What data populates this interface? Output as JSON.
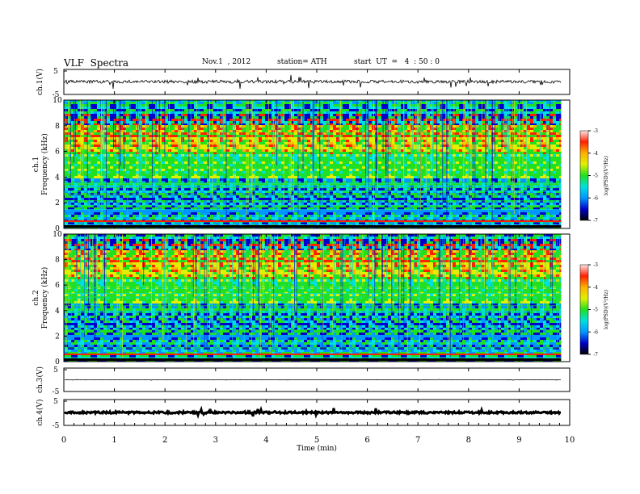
{
  "header": {
    "title": "VLF  Spectra",
    "date": "Nov.1  , 2012",
    "station": "station= ATH",
    "start_ut": "start  UT  =   4  : 50 : 0"
  },
  "chart_data": {
    "type": "heatmap",
    "xlabel": "Time  (min)",
    "x_ticks": [
      "0",
      "1",
      "2",
      "3",
      "4",
      "5",
      "6",
      "7",
      "8",
      "9",
      "10"
    ],
    "xlim": [
      0,
      10
    ],
    "data_end_min": 9.83,
    "panels": [
      {
        "id": "ch1_wave",
        "ylabel": "ch.1(V)",
        "y_ticks": [
          "5",
          "-5"
        ],
        "ylim": [
          -5,
          5
        ],
        "trace_level": 0.1,
        "trace_noise": 0.25
      },
      {
        "id": "ch1_spec",
        "ylabel_top": "ch.1",
        "ylabel": "Frequency  (kHz)",
        "y_ticks": [
          "0",
          "2",
          "4",
          "6",
          "8",
          "10"
        ],
        "ylim": [
          0,
          10
        ]
      },
      {
        "id": "ch2_spec",
        "ylabel_top": "ch.2",
        "ylabel": "Frequency  (kHz)",
        "y_ticks": [
          "0",
          "2",
          "4",
          "6",
          "8",
          "10"
        ],
        "ylim": [
          0,
          10
        ]
      },
      {
        "id": "ch3_wave",
        "ylabel": "ch.3(V)",
        "y_ticks": [
          "5",
          "-5"
        ],
        "ylim": [
          -5,
          5
        ],
        "trace_level": 0.0,
        "trace_noise": 0.02
      },
      {
        "id": "ch4_wave",
        "ylabel": "ch.4(V)",
        "y_ticks": [
          "5",
          "-5"
        ],
        "ylim": [
          -5,
          5
        ],
        "trace_level": 0.0,
        "trace_noise": 0.15
      }
    ],
    "colorbar": {
      "label": "log(PSD)(V²/Hz)",
      "ticks": [
        "-3",
        "-4",
        "-5",
        "-6",
        "-7"
      ],
      "range": [
        -7,
        -3
      ],
      "colors": [
        "#000000",
        "#0000cc",
        "#0096ff",
        "#00e0e0",
        "#20e020",
        "#e0f000",
        "#ffb000",
        "#ff2000",
        "#ffe6e6"
      ]
    }
  }
}
